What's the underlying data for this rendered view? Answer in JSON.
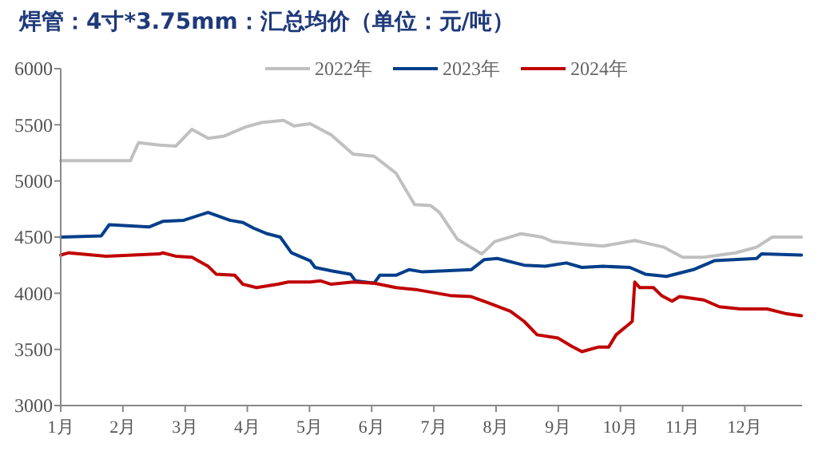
{
  "chart_data": {
    "type": "line",
    "title": "焊管：4寸*3.75mm：汇总均价（单位：元/吨）",
    "xlim": [
      1,
      12.92
    ],
    "xticks": [
      {
        "value": 1,
        "label": "1月"
      },
      {
        "value": 2,
        "label": "2月"
      },
      {
        "value": 3,
        "label": "3月"
      },
      {
        "value": 4,
        "label": "4月"
      },
      {
        "value": 5,
        "label": "5月"
      },
      {
        "value": 6,
        "label": "6月"
      },
      {
        "value": 7,
        "label": "7月"
      },
      {
        "value": 8,
        "label": "8月"
      },
      {
        "value": 9,
        "label": "9月"
      },
      {
        "value": 10,
        "label": "10月"
      },
      {
        "value": 11,
        "label": "11月"
      },
      {
        "value": 12,
        "label": "12月"
      }
    ],
    "ylim": [
      3000,
      6000
    ],
    "yticks": [
      3000,
      3500,
      4000,
      4500,
      5000,
      5500,
      6000
    ],
    "grid": false,
    "legend": "top",
    "series": [
      {
        "name": "2022年",
        "color": "#c0c0c0",
        "x": [
          1,
          2.12,
          2.25,
          2.59,
          2.85,
          3.11,
          3.37,
          3.63,
          3.97,
          4.23,
          4.58,
          4.75,
          5.01,
          5.35,
          5.7,
          6.04,
          6.39,
          6.69,
          6.95,
          7.09,
          7.38,
          7.77,
          7.98,
          8.4,
          8.74,
          8.91,
          9.3,
          9.72,
          10.23,
          10.7,
          11,
          11.34,
          11.85,
          12.19,
          12.44,
          12.91
        ],
        "values": [
          5180,
          5180,
          5340,
          5320,
          5310,
          5460,
          5380,
          5400,
          5480,
          5520,
          5540,
          5490,
          5510,
          5410,
          5240,
          5220,
          5070,
          4790,
          4780,
          4720,
          4480,
          4350,
          4460,
          4530,
          4500,
          4460,
          4440,
          4420,
          4470,
          4410,
          4320,
          4320,
          4360,
          4410,
          4500,
          4500
        ]
      },
      {
        "name": "2023年",
        "color": "#003e8a",
        "x": [
          1,
          1.65,
          1.78,
          2.42,
          2.64,
          2.98,
          3.37,
          3.72,
          3.93,
          4.1,
          4.32,
          4.53,
          4.71,
          5.01,
          5.09,
          5.35,
          5.66,
          5.74,
          6.04,
          6.13,
          6.39,
          6.6,
          6.82,
          7.6,
          7.81,
          8.02,
          8.45,
          8.79,
          9.13,
          9.38,
          9.72,
          10.15,
          10.4,
          10.74,
          11.17,
          11.51,
          12.19,
          12.27,
          12.91
        ],
        "values": [
          4500,
          4510,
          4610,
          4590,
          4640,
          4650,
          4720,
          4650,
          4630,
          4580,
          4530,
          4500,
          4360,
          4290,
          4230,
          4200,
          4170,
          4110,
          4090,
          4160,
          4160,
          4210,
          4190,
          4210,
          4300,
          4310,
          4250,
          4240,
          4270,
          4230,
          4240,
          4230,
          4170,
          4150,
          4210,
          4290,
          4310,
          4350,
          4340
        ]
      },
      {
        "name": "2024年",
        "color": "#c00000",
        "x": [
          1,
          1.13,
          1.73,
          2.59,
          2.64,
          2.85,
          3.11,
          3.37,
          3.5,
          3.8,
          3.93,
          4.15,
          4.49,
          4.66,
          5.01,
          5.18,
          5.35,
          5.7,
          6.04,
          6.39,
          6.74,
          7.26,
          7.6,
          7.85,
          8.23,
          8.45,
          8.66,
          9,
          9.21,
          9.38,
          9.64,
          9.81,
          9.93,
          10.15,
          10.19,
          10.23,
          10.31,
          10.53,
          10.66,
          10.83,
          10.95,
          11.34,
          11.59,
          11.93,
          12.36,
          12.65,
          12.91
        ],
        "values": [
          4340,
          4360,
          4330,
          4350,
          4360,
          4330,
          4320,
          4240,
          4170,
          4160,
          4080,
          4050,
          4080,
          4100,
          4100,
          4110,
          4080,
          4100,
          4090,
          4050,
          4030,
          3980,
          3970,
          3920,
          3840,
          3750,
          3630,
          3600,
          3530,
          3480,
          3520,
          3520,
          3630,
          3730,
          3750,
          4100,
          4050,
          4050,
          3980,
          3930,
          3970,
          3940,
          3880,
          3860,
          3860,
          3820,
          3800
        ]
      }
    ]
  }
}
